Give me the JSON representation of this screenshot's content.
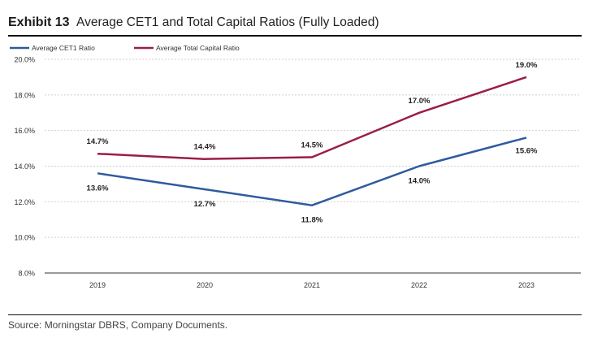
{
  "header": {
    "exhibit_label": "Exhibit 13",
    "title": "Average CET1 and Total Capital Ratios (Fully Loaded)"
  },
  "source": "Source: Morningstar DBRS, Company Documents.",
  "chart_data": {
    "type": "line",
    "categories": [
      "2019",
      "2020",
      "2021",
      "2022",
      "2023"
    ],
    "series": [
      {
        "name": "Average CET1 Ratio",
        "color": "#2e5b9f",
        "values": [
          13.6,
          12.7,
          11.8,
          14.0,
          15.6
        ],
        "labels": [
          "13.6%",
          "12.7%",
          "11.8%",
          "14.0%",
          "15.6%"
        ]
      },
      {
        "name": "Average Total Capital Ratio",
        "color": "#9b1c4b",
        "values": [
          14.7,
          14.4,
          14.5,
          17.0,
          19.0
        ],
        "labels": [
          "14.7%",
          "14.4%",
          "14.5%",
          "17.0%",
          "19.0%"
        ]
      }
    ],
    "ylim": [
      8.0,
      20.0
    ],
    "yticks": [
      "8.0%",
      "10.0%",
      "12.0%",
      "14.0%",
      "16.0%",
      "18.0%",
      "20.0%"
    ],
    "grid": "horizontal dashed",
    "legend": "top-left"
  }
}
